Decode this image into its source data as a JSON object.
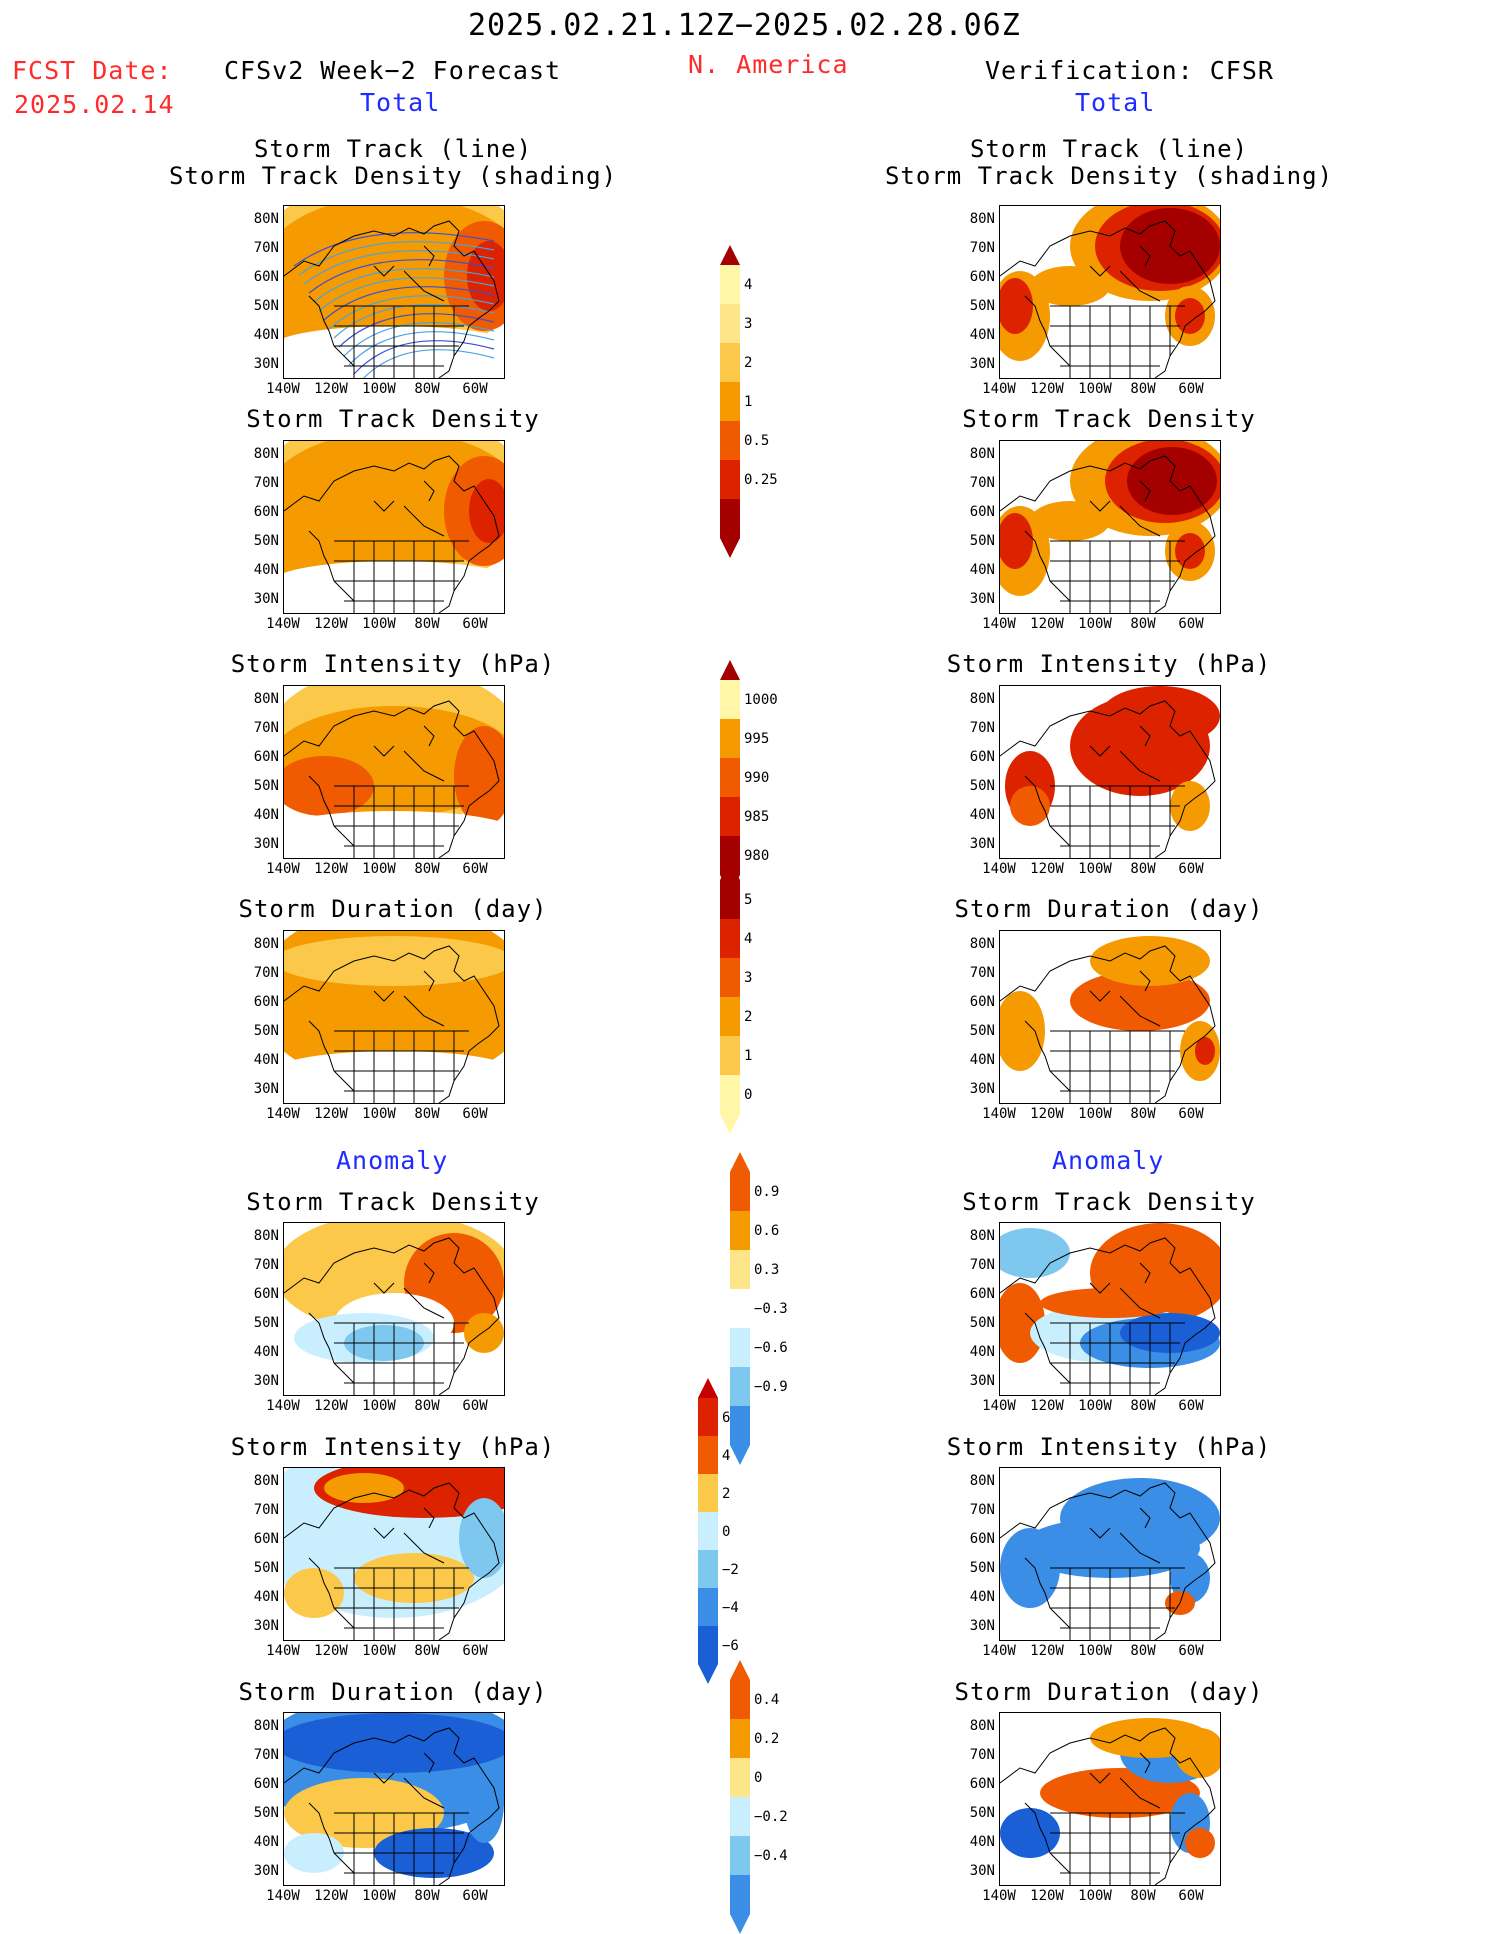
{
  "header": {
    "time_range": "2025.02.21.12Z−2025.02.28.06Z",
    "fcst_label": "FCST Date:",
    "fcst_date": "2025.02.14",
    "left_title": "CFSv2 Week−2 Forecast",
    "region": "N. America",
    "right_title": "Verification: CFSR"
  },
  "sections": {
    "total": "Total",
    "anomaly": "Anomaly"
  },
  "panel_titles": {
    "track_line": "Storm Track (line)",
    "track_density_shading": "Storm Track Density (shading)",
    "track_density": "Storm Track Density",
    "intensity": "Storm Intensity (hPa)",
    "duration": "Storm Duration (day)"
  },
  "lat_ticks": [
    "80N",
    "70N",
    "60N",
    "50N",
    "40N",
    "30N"
  ],
  "lon_ticks": [
    "140W",
    "120W",
    "100W",
    "80W",
    "60W"
  ],
  "colorbars": {
    "density": [
      "4",
      "3",
      "2",
      "1",
      "0.5",
      "0.25"
    ],
    "intensity": [
      "1000",
      "995",
      "990",
      "985",
      "980"
    ],
    "duration": [
      "5",
      "4",
      "3",
      "2",
      "1",
      "0"
    ],
    "density_anom": [
      "0.9",
      "0.6",
      "0.3",
      "−0.3",
      "−0.6",
      "−0.9"
    ],
    "intensity_anom": [
      "6",
      "4",
      "2",
      "0",
      "−2",
      "−4",
      "−6"
    ],
    "duration_anom": [
      "0.4",
      "0.2",
      "0",
      "−0.2",
      "−0.4"
    ]
  },
  "colors": {
    "dark_red": "#a50000",
    "red": "#dd2200",
    "orange_red": "#f05a00",
    "orange": "#f59a00",
    "light_orange": "#fbc84a",
    "pale_yellow": "#fff6a8",
    "light_blue": "#c9efff",
    "mid_blue": "#7ec8f0",
    "blue": "#3a8ee6",
    "dark_blue": "#1a5fd6",
    "track_blue": "#4aa3df"
  }
}
